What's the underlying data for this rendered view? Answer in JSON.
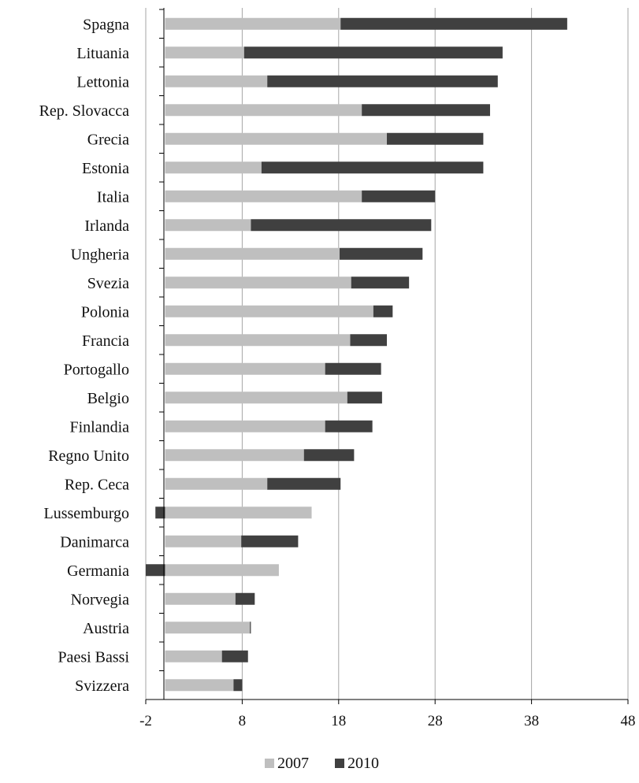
{
  "chart_data": {
    "type": "bar",
    "orientation": "horizontal",
    "stacked": true,
    "title": "",
    "xlabel": "",
    "ylabel": "",
    "xlim": [
      -2,
      48
    ],
    "xticks": [
      "-2",
      "8",
      "18",
      "28",
      "38",
      "48"
    ],
    "grid": "vertical",
    "legend_position": "bottom",
    "categories": [
      "Spagna",
      "Lituania",
      "Lettonia",
      "Rep. Slovacca",
      "Grecia",
      "Estonia",
      "Italia",
      "Irlanda",
      "Ungheria",
      "Svezia",
      "Polonia",
      "Francia",
      "Portogallo",
      "Belgio",
      "Finlandia",
      "Regno Unito",
      "Rep. Ceca",
      "Lussemburgo",
      "Danimarca",
      "Germania",
      "Norvegia",
      "Austria",
      "Paesi Bassi",
      "Svizzera"
    ],
    "series": [
      {
        "name": "2007",
        "color": "#bfbfbf",
        "values": [
          18.2,
          8.2,
          10.6,
          20.4,
          23.0,
          10.0,
          20.4,
          8.9,
          18.1,
          19.3,
          21.6,
          19.2,
          16.6,
          18.9,
          16.6,
          14.4,
          10.6,
          15.2,
          7.9,
          11.8,
          7.3,
          8.8,
          5.9,
          7.1
        ]
      },
      {
        "name": "2010",
        "color": "#404040",
        "values": [
          23.5,
          26.8,
          23.9,
          13.3,
          10.0,
          23.0,
          7.6,
          18.7,
          8.6,
          6.0,
          2.0,
          3.8,
          5.8,
          3.6,
          4.9,
          5.2,
          7.6,
          -1.0,
          5.9,
          -2.0,
          2.0,
          0.1,
          2.7,
          0.9
        ]
      }
    ]
  }
}
